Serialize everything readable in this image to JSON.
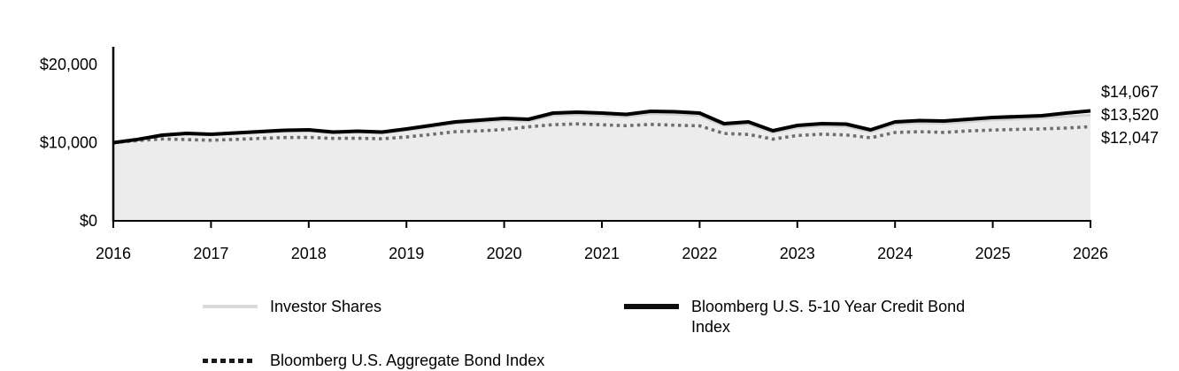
{
  "figure": {
    "background": "#ffffff",
    "axis_color": "#000000",
    "text_color": "#000000"
  },
  "chart_data": {
    "type": "area",
    "title": "",
    "xlabel": "",
    "ylabel": "",
    "xlim": [
      2016,
      2026
    ],
    "ylim": [
      0,
      20000
    ],
    "grid": "off",
    "legend_position": "bottom",
    "x_ticks": [
      "2016",
      "2017",
      "2018",
      "2019",
      "2020",
      "2021",
      "2022",
      "2023",
      "2024",
      "2025",
      "2026"
    ],
    "y_ticks": [
      {
        "value": 0,
        "label": "$0"
      },
      {
        "value": 10000,
        "label": "$10,000"
      },
      {
        "value": 20000,
        "label": "$20,000"
      }
    ],
    "x": [
      2016,
      2016.25,
      2016.5,
      2016.75,
      2017,
      2017.25,
      2017.5,
      2017.75,
      2018,
      2018.25,
      2018.5,
      2018.75,
      2019,
      2019.25,
      2019.5,
      2019.75,
      2020,
      2020.25,
      2020.5,
      2020.75,
      2021,
      2021.25,
      2021.5,
      2021.75,
      2022,
      2022.25,
      2022.5,
      2022.75,
      2023,
      2023.25,
      2023.5,
      2023.75,
      2024,
      2024.25,
      2024.5,
      2024.75,
      2025,
      2025.25,
      2025.5,
      2025.75,
      2026
    ],
    "series": [
      {
        "name": "Investor Shares",
        "style": "area",
        "line_color": "#d2d2d2",
        "fill_color": "#ececec",
        "end_label": "$13,520",
        "final_value": 13520,
        "values": [
          10000,
          10370,
          10900,
          11100,
          10980,
          11140,
          11300,
          11450,
          11500,
          11230,
          11330,
          11220,
          11590,
          12020,
          12450,
          12650,
          12870,
          12740,
          13490,
          13600,
          13480,
          13320,
          13690,
          13630,
          13460,
          12160,
          12380,
          11280,
          11930,
          12150,
          12090,
          11380,
          12370,
          12530,
          12480,
          12690,
          12910,
          13010,
          13130,
          13350,
          13520
        ]
      },
      {
        "name": "Bloomberg U.S. Aggregate Bond Index",
        "style": "dotted",
        "line_color": "#6e6e6e",
        "legend_swatch_color": "#1a1a1a",
        "end_label": "$12,047",
        "final_value": 12047,
        "values": [
          10000,
          10260,
          10480,
          10400,
          10300,
          10420,
          10540,
          10650,
          10680,
          10540,
          10560,
          10500,
          10720,
          11050,
          11400,
          11500,
          11680,
          12020,
          12300,
          12400,
          12280,
          12170,
          12340,
          12230,
          12160,
          11180,
          11050,
          10450,
          10920,
          11080,
          10980,
          10620,
          11300,
          11400,
          11310,
          11500,
          11620,
          11700,
          11760,
          11870,
          12047
        ]
      },
      {
        "name": "Bloomberg U.S. 5-10 Year Credit Bond Index",
        "style": "solid",
        "line_color": "#000000",
        "end_label": "$14,067",
        "final_value": 14067,
        "values": [
          10000,
          10420,
          10960,
          11190,
          11070,
          11240,
          11410,
          11580,
          11640,
          11360,
          11470,
          11360,
          11750,
          12200,
          12660,
          12880,
          13110,
          12990,
          13780,
          13900,
          13780,
          13620,
          14010,
          13950,
          13780,
          12430,
          12660,
          11530,
          12200,
          12430,
          12370,
          11640,
          12660,
          12820,
          12770,
          12990,
          13220,
          13330,
          13450,
          13780,
          14067
        ]
      }
    ],
    "end_labels_top_to_bottom": [
      "$14,067",
      "$13,520",
      "$12,047"
    ]
  }
}
